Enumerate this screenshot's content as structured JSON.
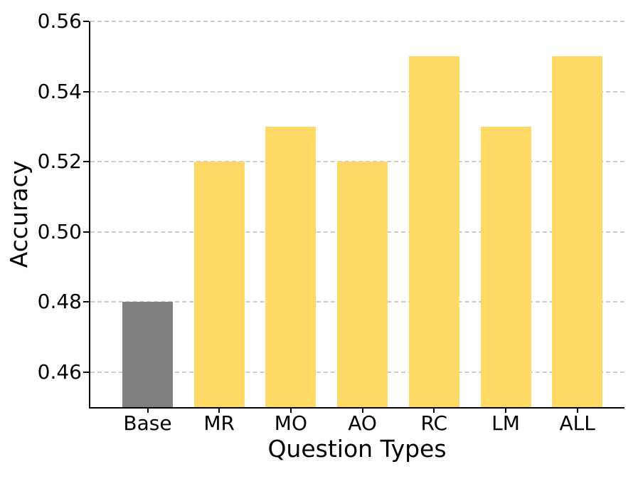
{
  "chart_data": {
    "type": "bar",
    "title": "",
    "xlabel": "Question Types",
    "ylabel": "Accuracy",
    "categories": [
      "Base",
      "MR",
      "MO",
      "AO",
      "RC",
      "LM",
      "ALL"
    ],
    "values": [
      0.48,
      0.52,
      0.53,
      0.52,
      0.55,
      0.53,
      0.55
    ],
    "bar_colors": [
      "#808080",
      "#FFD966",
      "#FFD966",
      "#FFD966",
      "#FFD966",
      "#FFD966",
      "#FFD966"
    ],
    "base_bar_color": "#808080",
    "highlight_bar_color": "#FFD966",
    "ylim": [
      0.45,
      0.56
    ],
    "yticks": [
      0.46,
      0.48,
      0.5,
      0.52,
      0.54,
      0.56
    ],
    "ytick_labels": [
      "0.46",
      "0.48",
      "0.50",
      "0.52",
      "0.54",
      "0.56"
    ],
    "grid": "horizontal-dashed",
    "grid_color": "#cccccc",
    "axis_color": "#000000",
    "text_color": "#000000",
    "background_color": "#ffffff",
    "legend": "none"
  }
}
